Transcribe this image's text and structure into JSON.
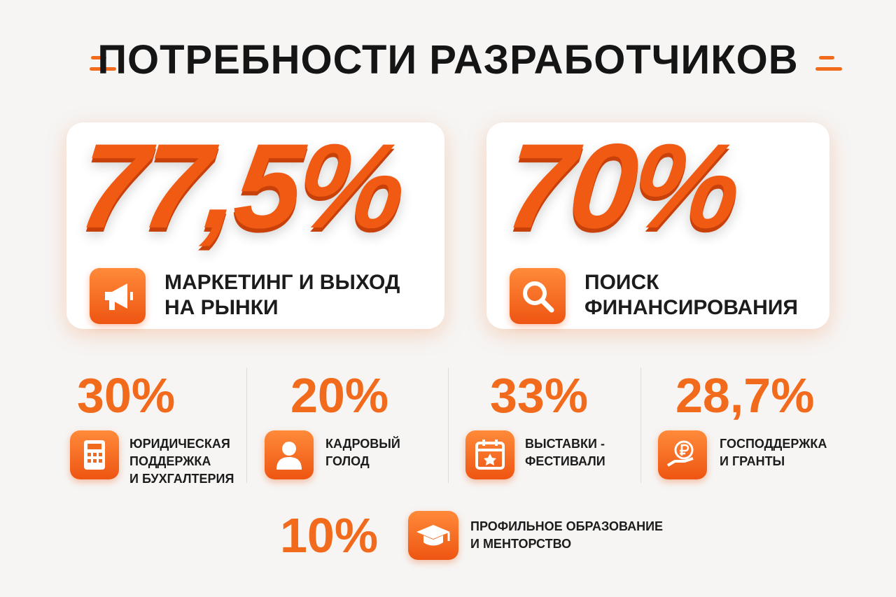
{
  "title": "ПОТРЕБНОСТИ РАЗРАБОТЧИКОВ",
  "main_stats": [
    {
      "value": "77,5%",
      "label_lines": [
        "МАРКЕТИНГ И ВЫХОД",
        "НА РЫНКИ"
      ]
    },
    {
      "value": "70%",
      "label_lines": [
        "ПОИСК",
        "ФИНАНСИРОВАНИЯ"
      ]
    }
  ],
  "secondary_stats": [
    {
      "value": "30%",
      "label_lines": [
        "ЮРИДИЧЕСКАЯ",
        "ПОДДЕРЖКА",
        "И БУХГАЛТЕРИЯ"
      ]
    },
    {
      "value": "20%",
      "label_lines": [
        "КАДРОВЫЙ",
        "ГОЛОД"
      ]
    },
    {
      "value": "33%",
      "label_lines": [
        "ВЫСТАВКИ -",
        "ФЕСТИВАЛИ"
      ]
    },
    {
      "value": "28,7%",
      "label_lines": [
        "ГОСПОДДЕРЖКА",
        "И ГРАНТЫ"
      ]
    }
  ],
  "bottom_stat": {
    "value": "10%",
    "label_lines": [
      "ПРОФИЛЬНОЕ ОБРАЗОВАНИЕ",
      "И МЕНТОРСТВО"
    ]
  }
}
